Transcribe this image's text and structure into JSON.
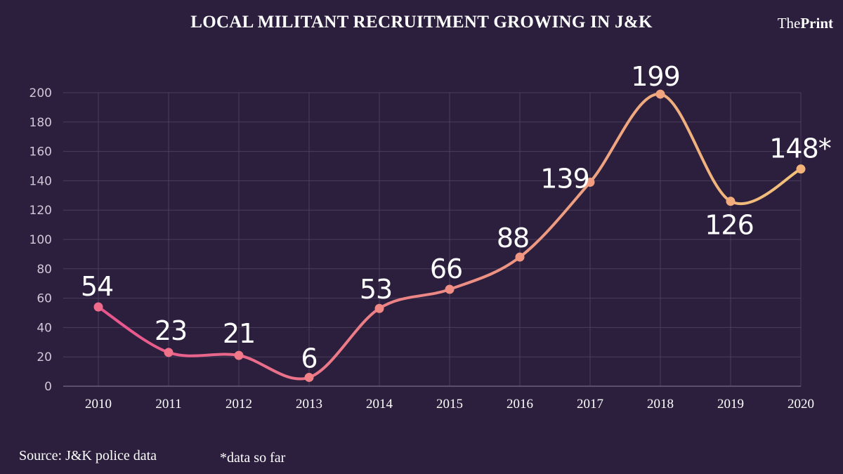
{
  "brand": {
    "part1": "The",
    "part2": "Print"
  },
  "footer": {
    "source": "Source: J&K police data",
    "note": "*data so far"
  },
  "colors": {
    "background": "#2b1f3d",
    "line_start": "#e8548e",
    "line_end": "#f2c27a",
    "grid": "#4a3e5c"
  },
  "chart_data": {
    "type": "line",
    "title": "LOCAL MILITANT RECRUITMENT GROWING IN J&K",
    "xlabel": "",
    "ylabel": "",
    "ylim": [
      0,
      200
    ],
    "yticks": [
      0,
      20,
      40,
      60,
      80,
      100,
      120,
      140,
      160,
      180,
      200
    ],
    "categories": [
      "2010",
      "2011",
      "2012",
      "2013",
      "2014",
      "2015",
      "2016",
      "2017",
      "2018",
      "2019",
      "2020"
    ],
    "values": [
      54,
      23,
      21,
      6,
      53,
      66,
      88,
      139,
      199,
      126,
      148
    ],
    "labels": [
      "54",
      "23",
      "21",
      "6",
      "53",
      "66",
      "88",
      "139",
      "199",
      "126",
      "148*"
    ],
    "grid": true,
    "legend": "none"
  }
}
